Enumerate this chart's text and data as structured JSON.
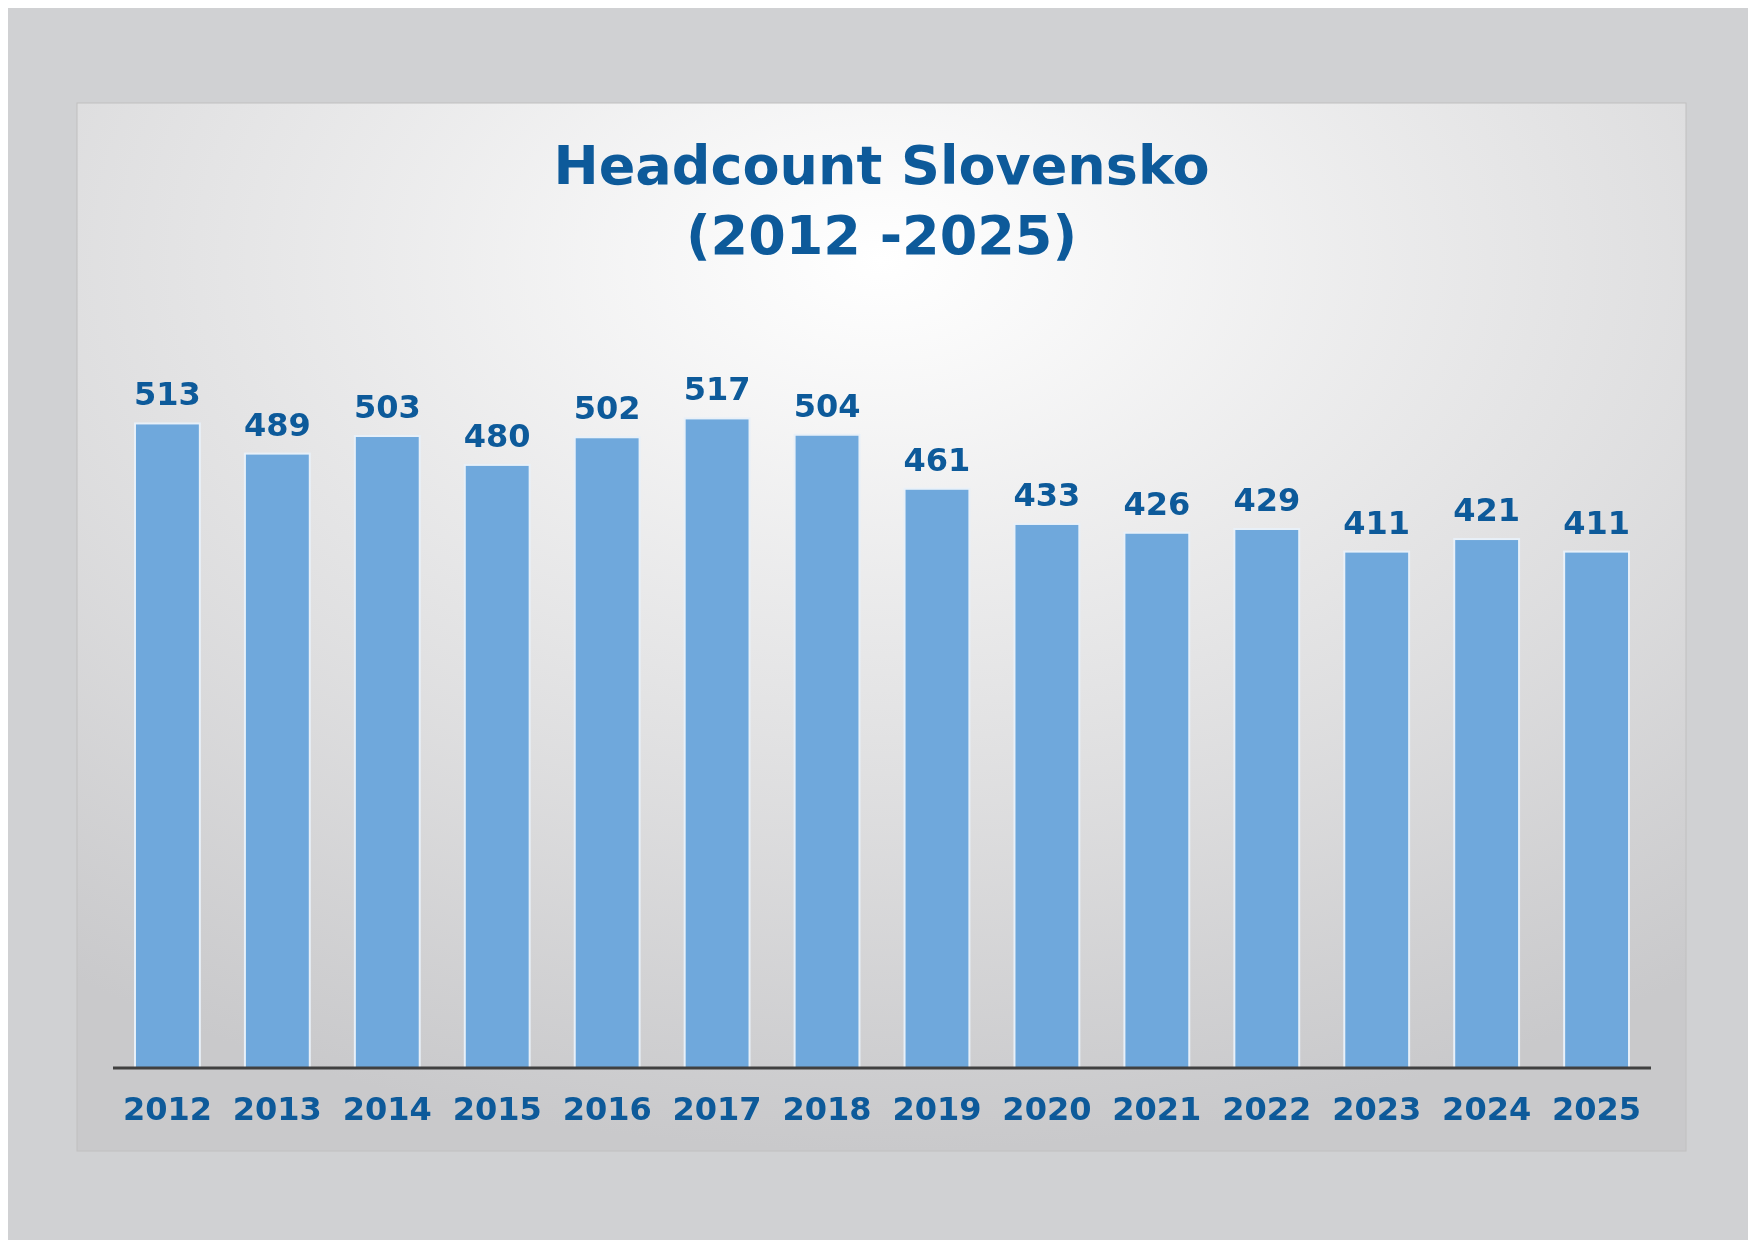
{
  "chart_data": {
    "type": "bar",
    "title": "Headcount Slovensko\n(2012 -2025)",
    "categories": [
      "2012",
      "2013",
      "2014",
      "2015",
      "2016",
      "2017",
      "2018",
      "2019",
      "2020",
      "2021",
      "2022",
      "2023",
      "2024",
      "2025"
    ],
    "values": [
      513,
      489,
      503,
      480,
      502,
      517,
      504,
      461,
      433,
      426,
      429,
      411,
      421,
      411
    ],
    "color": "#6fa8dc",
    "data_labels": true
  }
}
